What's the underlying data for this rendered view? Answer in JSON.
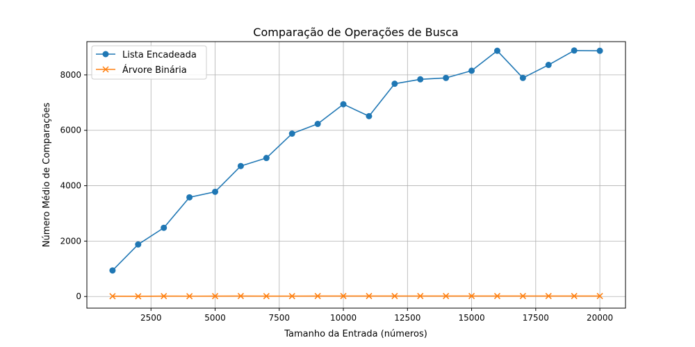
{
  "chart_data": {
    "type": "line",
    "title": "Comparação de Operações de Busca",
    "xlabel": "Tamanho da Entrada (números)",
    "ylabel": "Número Médio de Comparações",
    "xlim": [
      0,
      21000
    ],
    "ylim": [
      -420,
      9200
    ],
    "x_ticks": [
      2500,
      5000,
      7500,
      10000,
      12500,
      15000,
      17500,
      20000
    ],
    "y_ticks": [
      0,
      2000,
      4000,
      6000,
      8000
    ],
    "grid": true,
    "legend_position": "top-left",
    "x": [
      1000,
      2000,
      3000,
      4000,
      5000,
      6000,
      7000,
      8000,
      9000,
      10000,
      11000,
      12000,
      13000,
      14000,
      15000,
      16000,
      17000,
      18000,
      19000,
      20000
    ],
    "series": [
      {
        "name": "Lista Encadeada",
        "color": "#1f77b4",
        "marker": "circle",
        "values": [
          940,
          1880,
          2480,
          3580,
          3780,
          4710,
          5000,
          5880,
          6230,
          6940,
          6510,
          7680,
          7840,
          7890,
          8150,
          8870,
          7890,
          8360,
          8880,
          8870
        ]
      },
      {
        "name": "Árvore Binária",
        "color": "#ff7f0e",
        "marker": "x",
        "values": [
          10,
          8,
          14,
          12,
          15,
          16,
          13,
          14,
          16,
          17,
          16,
          16,
          16,
          17,
          17,
          16,
          18,
          17,
          18,
          18
        ]
      }
    ]
  }
}
